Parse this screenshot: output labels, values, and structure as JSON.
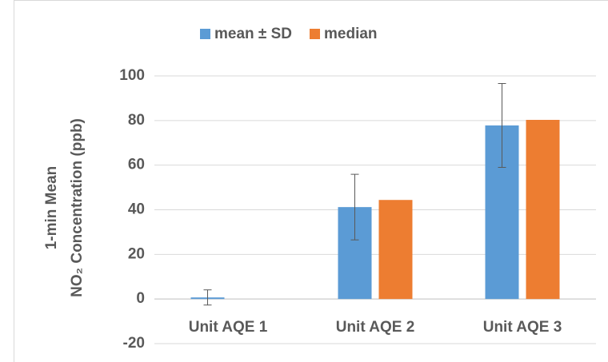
{
  "chart_data": {
    "type": "bar",
    "y_label": [
      "1-min Mean",
      "NO₂ Concentration (ppb)"
    ],
    "categories": [
      "Unit AQE 1",
      "Unit AQE 2",
      "Unit AQE 3"
    ],
    "series": [
      {
        "name": "mean ± SD",
        "color": "#5b9bd5",
        "values": [
          0.7,
          41.2,
          77.8
        ],
        "errors": [
          3.4,
          14.7,
          18.8
        ]
      },
      {
        "name": "median",
        "color": "#ed7d31",
        "values": [
          0,
          44.4,
          80.3
        ]
      }
    ],
    "ylim": [
      -20,
      100
    ],
    "yticks": [
      -20,
      0,
      20,
      40,
      60,
      80,
      100
    ],
    "grid": true,
    "legend": "top"
  }
}
